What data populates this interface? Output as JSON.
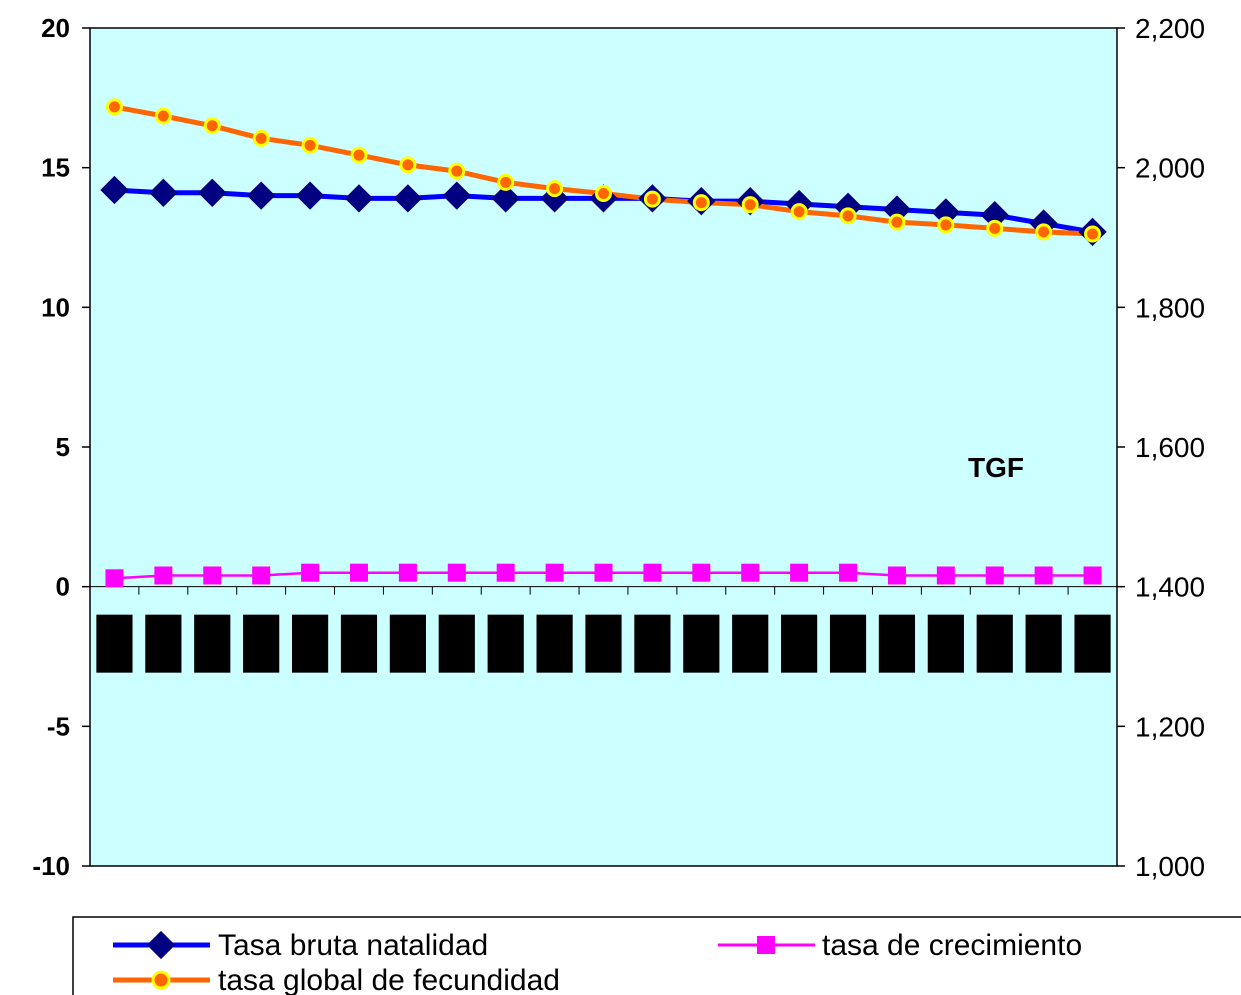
{
  "chart_data": {
    "type": "line",
    "title": "",
    "xlabel": "",
    "ylabel": "",
    "y_left_ticks": [
      "20",
      "15",
      "10",
      "5",
      "0",
      "-5",
      "-10"
    ],
    "y_right_ticks": [
      "2,200",
      "2,000",
      "1,800",
      "1,600",
      "1,400",
      "1,200",
      "1,000"
    ],
    "ylim_left": [
      -10,
      20
    ],
    "ylim_right": [
      1000,
      2200
    ],
    "categories_count": 21,
    "grid": false,
    "plot_background": "#ccffff",
    "legend_position": "bottom",
    "annotation": "TGF",
    "series": [
      {
        "name": "Tasa bruta natalidad",
        "axis": "left",
        "color": "#0000ff",
        "marker": "diamond",
        "marker_color": "#000080",
        "values": [
          14.2,
          14.1,
          14.1,
          14.0,
          14.0,
          13.9,
          13.9,
          14.0,
          13.9,
          13.9,
          13.9,
          13.9,
          13.8,
          13.8,
          13.7,
          13.6,
          13.5,
          13.4,
          13.3,
          13.0,
          12.7
        ]
      },
      {
        "name": "tasa de crecimiento",
        "axis": "left",
        "color": "#ff00ff",
        "marker": "square",
        "marker_color": "#ff00ff",
        "values": [
          0.3,
          0.4,
          0.4,
          0.4,
          0.5,
          0.5,
          0.5,
          0.5,
          0.5,
          0.5,
          0.5,
          0.5,
          0.5,
          0.5,
          0.5,
          0.5,
          0.4,
          0.4,
          0.4,
          0.4,
          0.4
        ]
      },
      {
        "name": "tasa global de fecundidad",
        "axis": "right",
        "color": "#ff6600",
        "marker": "circle",
        "marker_color": "#ffff00",
        "values": [
          2087,
          2074,
          2060,
          2042,
          2032,
          2018,
          2004,
          1995,
          1979,
          1970,
          1963,
          1955,
          1950,
          1947,
          1937,
          1931,
          1922,
          1918,
          1913,
          1908,
          1905
        ]
      }
    ],
    "redacted_labels": {
      "color": "#000000",
      "count": 21
    }
  }
}
